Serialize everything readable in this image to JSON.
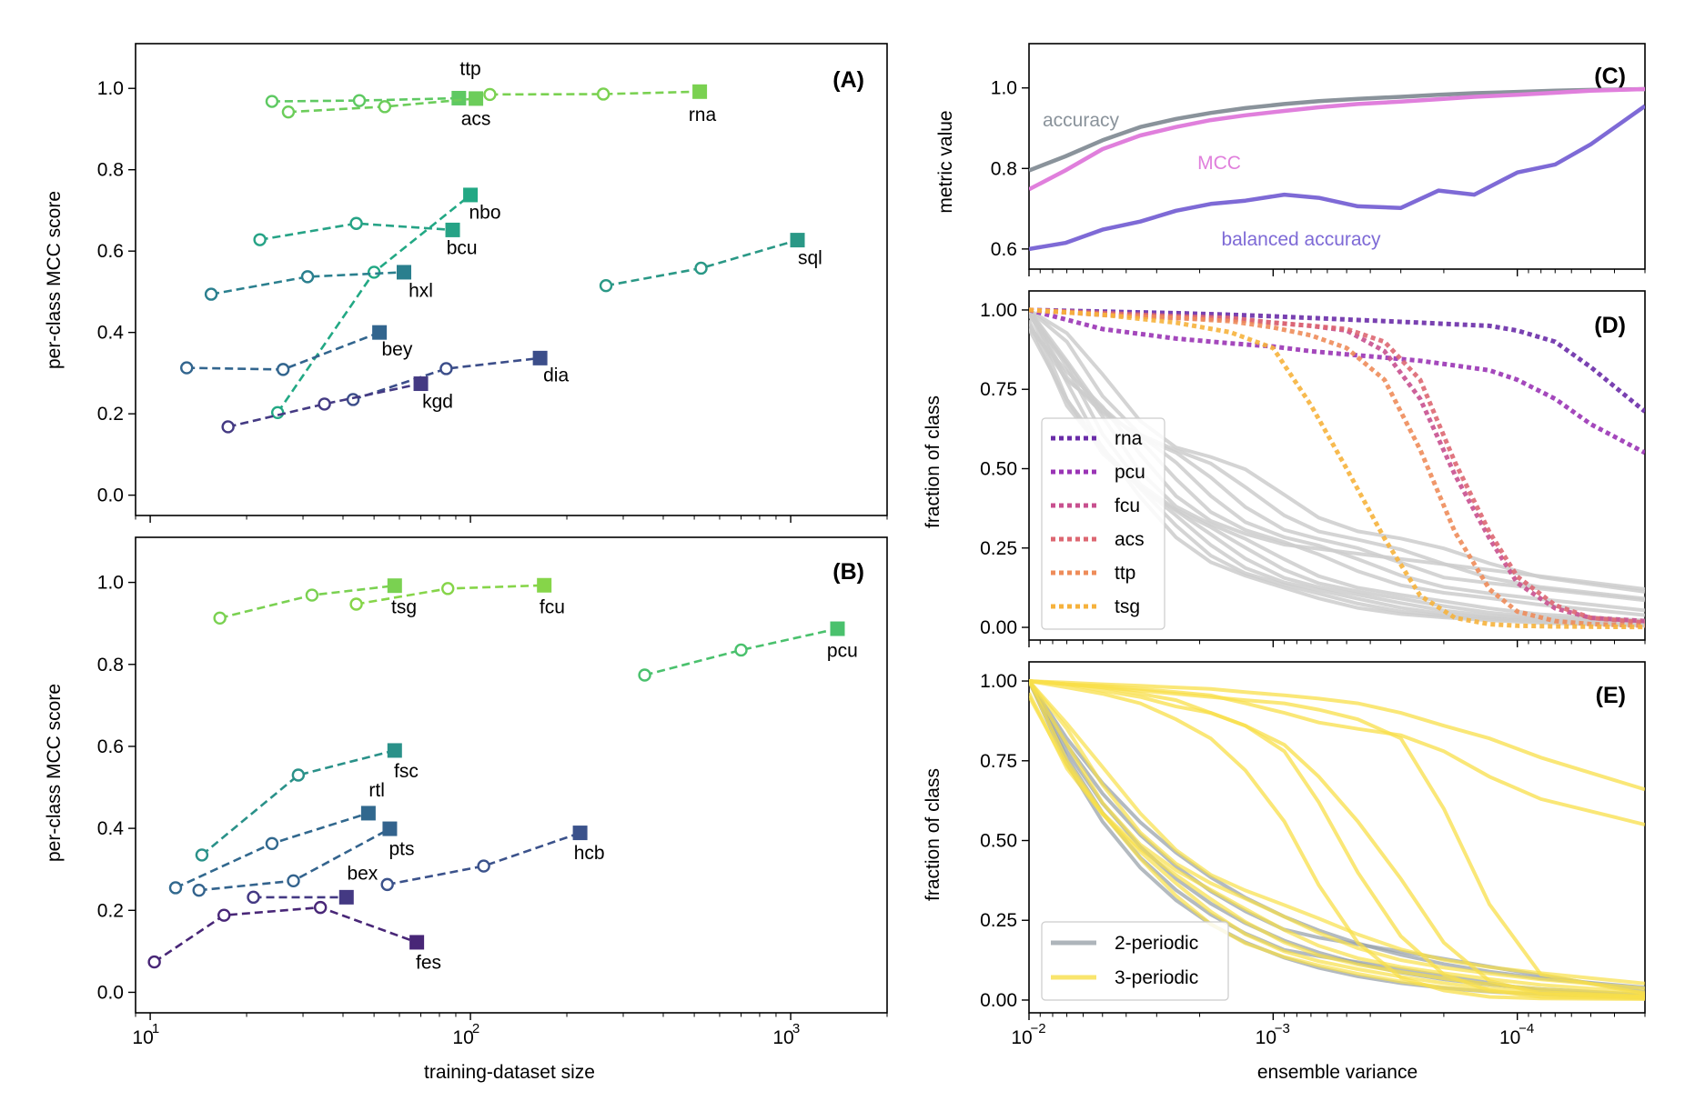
{
  "chart_data": [
    {
      "id": "A",
      "type": "line",
      "panel_label": "(A)",
      "ylabel": "per-class MCC score",
      "xscale": "log",
      "xlim": [
        9,
        2000
      ],
      "ylim": [
        -0.05,
        1.11
      ],
      "yticks": [
        0.0,
        0.2,
        0.4,
        0.6,
        0.8,
        1.0
      ],
      "ytick_labels": [
        "0.0",
        "0.2",
        "0.4",
        "0.6",
        "0.8",
        "1.0"
      ],
      "series": [
        {
          "name": "ttp",
          "color": "#5ec962",
          "x": [
            24,
            45,
            92
          ],
          "y": [
            0.968,
            0.97,
            0.976
          ]
        },
        {
          "name": "acs",
          "color": "#6ccd5a",
          "x": [
            27,
            54,
            104
          ],
          "y": [
            0.942,
            0.955,
            0.975
          ]
        },
        {
          "name": "rna",
          "color": "#7ad151",
          "x": [
            115,
            260,
            520
          ],
          "y": [
            0.985,
            0.986,
            0.992
          ]
        },
        {
          "name": "nbo",
          "color": "#22a884",
          "x": [
            25,
            50,
            100
          ],
          "y": [
            0.203,
            0.548,
            0.738
          ]
        },
        {
          "name": "bcu",
          "color": "#26a386",
          "x": [
            22,
            44,
            88
          ],
          "y": [
            0.628,
            0.668,
            0.652
          ]
        },
        {
          "name": "sql",
          "color": "#2a9886",
          "x": [
            265,
            525,
            1050
          ],
          "y": [
            0.515,
            0.558,
            0.627
          ]
        },
        {
          "name": "hxl",
          "color": "#2a7f8e",
          "x": [
            15.5,
            31,
            62
          ],
          "y": [
            0.494,
            0.537,
            0.548
          ]
        },
        {
          "name": "bey",
          "color": "#32658e",
          "x": [
            13,
            26,
            52
          ],
          "y": [
            0.313,
            0.309,
            0.4
          ]
        },
        {
          "name": "dia",
          "color": "#3c4e8a",
          "x": [
            43,
            84,
            165
          ],
          "y": [
            0.235,
            0.311,
            0.337
          ]
        },
        {
          "name": "kgd",
          "color": "#443a83",
          "x": [
            17.5,
            35,
            70
          ],
          "y": [
            0.168,
            0.224,
            0.274
          ]
        }
      ],
      "labels": [
        {
          "text": "ttp",
          "x": 100,
          "y": 1.033
        },
        {
          "text": "acs",
          "x": 104,
          "y": 0.91
        },
        {
          "text": "rna",
          "x": 530,
          "y": 0.92
        },
        {
          "text": "nbo",
          "x": 111,
          "y": 0.68
        },
        {
          "text": "bcu",
          "x": 94,
          "y": 0.593
        },
        {
          "text": "sql",
          "x": 1150,
          "y": 0.568
        },
        {
          "text": "hxl",
          "x": 70,
          "y": 0.487
        },
        {
          "text": "bey",
          "x": 59,
          "y": 0.343
        },
        {
          "text": "dia",
          "x": 185,
          "y": 0.28
        },
        {
          "text": "kgd",
          "x": 79,
          "y": 0.215
        }
      ]
    },
    {
      "id": "B",
      "type": "line",
      "panel_label": "(B)",
      "xlabel": "training-dataset size",
      "ylabel": "per-class MCC score",
      "xscale": "log",
      "xlim": [
        9,
        2000
      ],
      "ylim": [
        -0.05,
        1.11
      ],
      "yticks": [
        0.0,
        0.2,
        0.4,
        0.6,
        0.8,
        1.0
      ],
      "ytick_labels": [
        "0.0",
        "0.2",
        "0.4",
        "0.6",
        "0.8",
        "1.0"
      ],
      "xticks": [
        10,
        100,
        1000
      ],
      "xtick_labels": [
        "10",
        "10",
        "10"
      ],
      "xtick_exponents": [
        "1",
        "2",
        "3"
      ],
      "series": [
        {
          "name": "tsg",
          "color": "#7ad151",
          "x": [
            16.5,
            32,
            58
          ],
          "y": [
            0.913,
            0.969,
            0.992
          ]
        },
        {
          "name": "fcu",
          "color": "#86d549",
          "x": [
            44,
            85,
            170
          ],
          "y": [
            0.947,
            0.985,
            0.993
          ]
        },
        {
          "name": "pcu",
          "color": "#4ac16d",
          "x": [
            350,
            700,
            1400
          ],
          "y": [
            0.774,
            0.835,
            0.887
          ]
        },
        {
          "name": "fsc",
          "color": "#2a9189",
          "x": [
            14.5,
            29,
            58
          ],
          "y": [
            0.335,
            0.53,
            0.59
          ]
        },
        {
          "name": "rtl",
          "color": "#31688e",
          "x": [
            12,
            24,
            48
          ],
          "y": [
            0.255,
            0.363,
            0.437
          ]
        },
        {
          "name": "pts",
          "color": "#33638d",
          "x": [
            14.2,
            28,
            56
          ],
          "y": [
            0.249,
            0.272,
            0.399
          ]
        },
        {
          "name": "hcb",
          "color": "#3b528b",
          "x": [
            55,
            110,
            220
          ],
          "y": [
            0.263,
            0.308,
            0.389
          ]
        },
        {
          "name": "bex",
          "color": "#443983",
          "x": [
            21,
            41
          ],
          "y": [
            0.232,
            0.232
          ]
        },
        {
          "name": "fes",
          "color": "#482677",
          "x": [
            10.3,
            17,
            34,
            68
          ],
          "y": [
            0.074,
            0.188,
            0.207,
            0.122
          ]
        }
      ],
      "labels": [
        {
          "text": "tsg",
          "x": 62,
          "y": 0.925
        },
        {
          "text": "fcu",
          "x": 180,
          "y": 0.925
        },
        {
          "text": "pcu",
          "x": 1450,
          "y": 0.818
        },
        {
          "text": "fsc",
          "x": 63,
          "y": 0.525
        },
        {
          "text": "rtl",
          "x": 51,
          "y": 0.478
        },
        {
          "text": "pts",
          "x": 61,
          "y": 0.335
        },
        {
          "text": "hcb",
          "x": 235,
          "y": 0.325
        },
        {
          "text": "bex",
          "x": 46,
          "y": 0.275
        },
        {
          "text": "fes",
          "x": 74,
          "y": 0.058
        }
      ]
    },
    {
      "id": "C",
      "type": "line",
      "panel_label": "(C)",
      "ylabel": "metric value",
      "xscale": "log-reversed",
      "xlim": [
        0.01,
        3e-05
      ],
      "ylim": [
        0.55,
        1.11
      ],
      "yticks": [
        0.6,
        0.8,
        1.0
      ],
      "ytick_labels": [
        "0.6",
        "0.8",
        "1.0"
      ],
      "x": [
        0.01,
        0.0071,
        0.005,
        0.0035,
        0.0025,
        0.0018,
        0.0013,
        0.0009,
        0.00065,
        0.00045,
        0.0003,
        0.00021,
        0.00015,
        0.0001,
        7e-05,
        5e-05,
        3e-05
      ],
      "series": [
        {
          "name": "accuracy",
          "color": "#8a939b",
          "y": [
            0.795,
            0.83,
            0.87,
            0.903,
            0.923,
            0.938,
            0.95,
            0.96,
            0.967,
            0.973,
            0.978,
            0.983,
            0.987,
            0.99,
            0.993,
            0.995,
            0.997
          ]
        },
        {
          "name": "MCC",
          "color": "#e07fdc",
          "y": [
            0.748,
            0.795,
            0.848,
            0.882,
            0.903,
            0.92,
            0.932,
            0.943,
            0.952,
            0.96,
            0.966,
            0.972,
            0.978,
            0.983,
            0.988,
            0.993,
            0.997
          ]
        },
        {
          "name": "balanced accuracy",
          "color": "#7e6ad6",
          "y": [
            0.6,
            0.615,
            0.648,
            0.668,
            0.695,
            0.712,
            0.72,
            0.735,
            0.727,
            0.706,
            0.702,
            0.745,
            0.735,
            0.79,
            0.81,
            0.86,
            0.955
          ]
        }
      ],
      "labels": [
        {
          "text": "accuracy",
          "color": "#8a939b"
        },
        {
          "text": "MCC",
          "color": "#e07fdc"
        },
        {
          "text": "balanced accuracy",
          "color": "#7e6ad6"
        }
      ]
    },
    {
      "id": "D",
      "type": "line",
      "panel_label": "(D)",
      "ylabel": "fraction of class",
      "xscale": "log-reversed",
      "xlim": [
        0.01,
        3e-05
      ],
      "ylim": [
        -0.04,
        1.06
      ],
      "yticks": [
        0.0,
        0.25,
        0.5,
        0.75,
        1.0
      ],
      "ytick_labels": [
        "0.00",
        "0.25",
        "0.50",
        "0.75",
        "1.00"
      ],
      "legend_position": "lower-left",
      "x": [
        0.01,
        0.005,
        0.0025,
        0.0015,
        0.001,
        0.0007,
        0.0005,
        0.00035,
        0.00025,
        0.00018,
        0.00013,
        0.0001,
        7e-05,
        5e-05,
        3e-05
      ],
      "series": [
        {
          "name": "rna",
          "color": "#6a2ca8",
          "y": [
            1.0,
            0.995,
            0.99,
            0.985,
            0.98,
            0.975,
            0.97,
            0.965,
            0.96,
            0.955,
            0.95,
            0.935,
            0.9,
            0.82,
            0.68
          ]
        },
        {
          "name": "pcu",
          "color": "#9a34b5",
          "y": [
            1.0,
            0.94,
            0.91,
            0.895,
            0.885,
            0.87,
            0.86,
            0.85,
            0.84,
            0.825,
            0.81,
            0.78,
            0.72,
            0.64,
            0.55
          ]
        },
        {
          "name": "fcu",
          "color": "#c8508f",
          "y": [
            1.0,
            0.985,
            0.975,
            0.97,
            0.96,
            0.95,
            0.935,
            0.87,
            0.72,
            0.48,
            0.28,
            0.14,
            0.06,
            0.03,
            0.02
          ]
        },
        {
          "name": "acs",
          "color": "#dd6772",
          "y": [
            1.0,
            0.99,
            0.98,
            0.975,
            0.96,
            0.95,
            0.94,
            0.9,
            0.78,
            0.52,
            0.3,
            0.16,
            0.07,
            0.03,
            0.015
          ]
        },
        {
          "name": "ttp",
          "color": "#ee8c5a",
          "y": [
            1.0,
            0.985,
            0.975,
            0.965,
            0.945,
            0.92,
            0.88,
            0.78,
            0.56,
            0.3,
            0.12,
            0.05,
            0.02,
            0.01,
            0.005
          ]
        },
        {
          "name": "tsg",
          "color": "#f6b23c",
          "y": [
            1.0,
            0.985,
            0.96,
            0.93,
            0.88,
            0.7,
            0.5,
            0.28,
            0.1,
            0.03,
            0.01,
            0.005,
            0.003,
            0.002,
            0.001
          ]
        }
      ],
      "background_series_color": "#cccccc",
      "background_series_count": 12
    },
    {
      "id": "E",
      "type": "line",
      "panel_label": "(E)",
      "xlabel": "ensemble variance",
      "ylabel": "fraction of class",
      "xscale": "log-reversed",
      "xlim": [
        0.01,
        3e-05
      ],
      "ylim": [
        -0.04,
        1.06
      ],
      "yticks": [
        0.0,
        0.25,
        0.5,
        0.75,
        1.0
      ],
      "ytick_labels": [
        "0.00",
        "0.25",
        "0.50",
        "0.75",
        "1.00"
      ],
      "xticks": [
        0.01,
        0.001,
        0.0001
      ],
      "xtick_labels": [
        "10",
        "10",
        "10"
      ],
      "xtick_exponents": [
        "−2",
        "−3",
        "−4"
      ],
      "legend_position": "lower-left",
      "series": [
        {
          "name": "2-periodic",
          "color": "#9aa3ab"
        },
        {
          "name": "3-periodic",
          "color": "#f8df49"
        }
      ]
    }
  ]
}
